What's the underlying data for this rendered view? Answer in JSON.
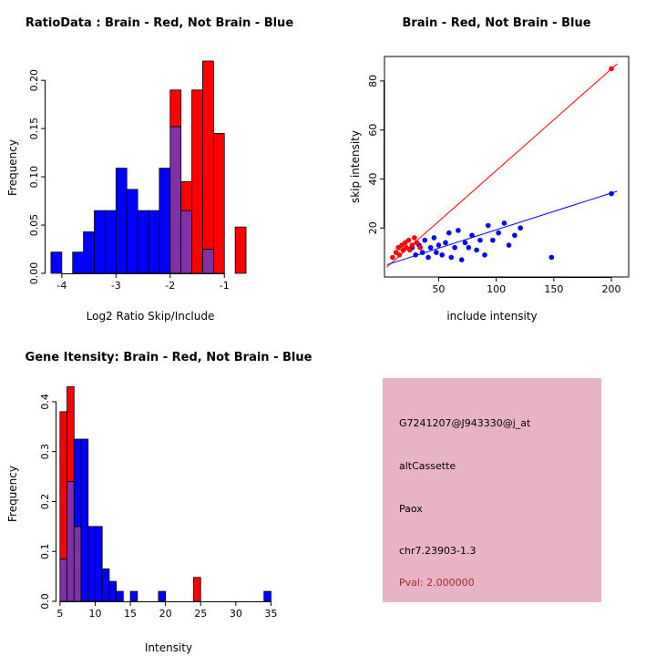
{
  "page": {
    "background": "#FFFFFF"
  },
  "colors": {
    "red": "#FF0000",
    "blue": "#0000FF",
    "purple": "#8031A7",
    "bar_border": "#000000",
    "axis": "#000000"
  },
  "chart_data": [
    {
      "id": "ratio_hist",
      "type": "bar",
      "title": "RatioData : Brain - Red, Not Brain - Blue",
      "xlabel": "Log2 Ratio Skip/Include",
      "ylabel": "Frequency",
      "xlim": [
        -4.3,
        -0.55
      ],
      "ylim": [
        0,
        0.22
      ],
      "xticks": [
        -4,
        -3,
        -2,
        -1
      ],
      "yticks": [
        0,
        0.05,
        0.1,
        0.15,
        0.2
      ],
      "ytick_labels": [
        "0.00",
        "0.05",
        "0.10",
        "0.15",
        "0.20"
      ],
      "grid": false,
      "legend": "none",
      "bin_width": 0.2,
      "bins": [
        {
          "x": -4.2,
          "red": 0,
          "blue": 0.022
        },
        {
          "x": -3.8,
          "red": 0,
          "blue": 0.022
        },
        {
          "x": -3.6,
          "red": 0,
          "blue": 0.043
        },
        {
          "x": -3.4,
          "red": 0,
          "blue": 0.065
        },
        {
          "x": -3.2,
          "red": 0,
          "blue": 0.065
        },
        {
          "x": -3.0,
          "red": 0,
          "blue": 0.109
        },
        {
          "x": -2.8,
          "red": 0,
          "blue": 0.087
        },
        {
          "x": -2.6,
          "red": 0,
          "blue": 0.065
        },
        {
          "x": -2.4,
          "red": 0,
          "blue": 0.065
        },
        {
          "x": -2.2,
          "red": 0,
          "blue": 0.109
        },
        {
          "x": -2.0,
          "red": 0.19,
          "blue": 0.152
        },
        {
          "x": -1.8,
          "red": 0.095,
          "blue": 0.065
        },
        {
          "x": -1.6,
          "red": 0.19,
          "blue": 0
        },
        {
          "x": -1.4,
          "red": 0.22,
          "blue": 0.025
        },
        {
          "x": -1.2,
          "red": 0.145,
          "blue": 0
        },
        {
          "x": -0.8,
          "red": 0.048,
          "blue": 0
        }
      ]
    },
    {
      "id": "intensity_scatter",
      "type": "scatter",
      "title": "Brain - Red, Not Brain - Blue",
      "xlabel": "include intensity",
      "ylabel": "skip intensity",
      "xlim": [
        3,
        215
      ],
      "ylim": [
        0,
        90
      ],
      "xticks": [
        50,
        100,
        150,
        200
      ],
      "yticks": [
        20,
        40,
        60,
        80
      ],
      "grid": false,
      "legend": "none",
      "box": true,
      "red_points": [
        [
          10,
          8
        ],
        [
          13,
          10
        ],
        [
          15,
          12
        ],
        [
          16,
          9
        ],
        [
          18,
          13
        ],
        [
          19,
          11
        ],
        [
          21,
          14
        ],
        [
          22,
          12
        ],
        [
          24,
          15
        ],
        [
          25,
          11
        ],
        [
          27,
          13
        ],
        [
          29,
          16
        ],
        [
          31,
          14
        ],
        [
          34,
          12
        ],
        [
          200,
          85
        ]
      ],
      "blue_points": [
        [
          27,
          12
        ],
        [
          30,
          9
        ],
        [
          33,
          13
        ],
        [
          36,
          10
        ],
        [
          38,
          15
        ],
        [
          41,
          8
        ],
        [
          43,
          12
        ],
        [
          46,
          16
        ],
        [
          48,
          10
        ],
        [
          50,
          13
        ],
        [
          53,
          9
        ],
        [
          56,
          14
        ],
        [
          59,
          18
        ],
        [
          61,
          8
        ],
        [
          64,
          12
        ],
        [
          67,
          19
        ],
        [
          70,
          7
        ],
        [
          73,
          14
        ],
        [
          76,
          12
        ],
        [
          79,
          17
        ],
        [
          83,
          11
        ],
        [
          86,
          15
        ],
        [
          90,
          9
        ],
        [
          93,
          21
        ],
        [
          97,
          15
        ],
        [
          102,
          18
        ],
        [
          107,
          22
        ],
        [
          111,
          13
        ],
        [
          116,
          17
        ],
        [
          121,
          20
        ],
        [
          148,
          8
        ],
        [
          200,
          34
        ]
      ],
      "red_line": [
        [
          5,
          4
        ],
        [
          205,
          87
        ]
      ],
      "blue_line": [
        [
          5,
          5
        ],
        [
          205,
          35
        ]
      ]
    },
    {
      "id": "gene_hist",
      "type": "bar",
      "title": "Gene Itensity: Brain - Red, Not Brain - Blue",
      "xlabel": "Intensity",
      "ylabel": "Frequency",
      "xlim": [
        4.5,
        36.5
      ],
      "ylim": [
        0,
        0.44
      ],
      "xticks": [
        5,
        10,
        15,
        20,
        25,
        30,
        35
      ],
      "yticks": [
        0,
        0.1,
        0.2,
        0.3,
        0.4
      ],
      "ytick_labels": [
        "0.0",
        "0.1",
        "0.2",
        "0.3",
        "0.4"
      ],
      "grid": false,
      "legend": "none",
      "bin_width": 1,
      "bins": [
        {
          "x": 5,
          "red": 0.38,
          "blue": 0.085
        },
        {
          "x": 6,
          "red": 0.43,
          "blue": 0.24
        },
        {
          "x": 7,
          "red": 0.15,
          "blue": 0.325
        },
        {
          "x": 8,
          "red": 0,
          "blue": 0.325
        },
        {
          "x": 9,
          "red": 0,
          "blue": 0.15
        },
        {
          "x": 10,
          "red": 0,
          "blue": 0.15
        },
        {
          "x": 11,
          "red": 0,
          "blue": 0.065
        },
        {
          "x": 12,
          "red": 0,
          "blue": 0.04
        },
        {
          "x": 13,
          "red": 0,
          "blue": 0.02
        },
        {
          "x": 15,
          "red": 0,
          "blue": 0.02
        },
        {
          "x": 19,
          "red": 0,
          "blue": 0.02
        },
        {
          "x": 24,
          "red": 0.048,
          "blue": 0
        },
        {
          "x": 34,
          "red": 0,
          "blue": 0.02
        }
      ]
    }
  ],
  "info_panel": {
    "background": "#E7B3C7",
    "lines": [
      {
        "text": "G7241207@J943330@j_at",
        "color": "#000000"
      },
      {
        "text": "altCassette",
        "color": "#000000"
      },
      {
        "text": "Paox",
        "color": "#000000"
      },
      {
        "text": "chr7.23903-1.3",
        "color": "#000000"
      },
      {
        "text": "Pval: 2.000000",
        "color": "#A52A2A"
      }
    ]
  }
}
